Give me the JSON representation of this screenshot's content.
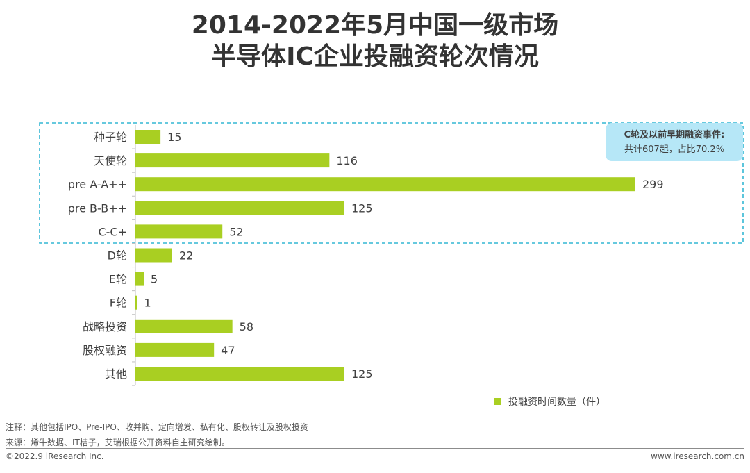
{
  "title_line1": "2014-2022年5月中国一级市场",
  "title_line2": "半导体IC企业投融资轮次情况",
  "chart_data": {
    "type": "bar",
    "orientation": "horizontal",
    "categories": [
      "种子轮",
      "天使轮",
      "pre A-A++",
      "pre B-B++",
      "C-C+",
      "D轮",
      "E轮",
      "F轮",
      "战略投资",
      "股权融资",
      "其他"
    ],
    "series": [
      {
        "name": "投融资时间数量（件）",
        "values": [
          15,
          116,
          299,
          125,
          52,
          22,
          5,
          1,
          58,
          47,
          125
        ]
      }
    ],
    "bar_color": "#a9cf22",
    "data_labels": true,
    "legend_position": "bottom-right",
    "grid": false
  },
  "highlight": {
    "box_color": "#34b7d4",
    "callout_color": "#b6e7f7",
    "callout_title": "C轮及以前早期融资事件:",
    "callout_text": "共计607起，占比70.2%"
  },
  "legend_label": "投融资时间数量（件）",
  "notes": {
    "note": "注释：其他包括IPO、Pre-IPO、收并购、定向增发、私有化、股权转让及股权投资",
    "source": "来源：烯牛数据、IT桔子，艾瑞根据公开资料自主研究绘制。"
  },
  "footer": {
    "copyright": "©2022.9 iResearch Inc.",
    "website": "www.iresearch.com.cn"
  }
}
